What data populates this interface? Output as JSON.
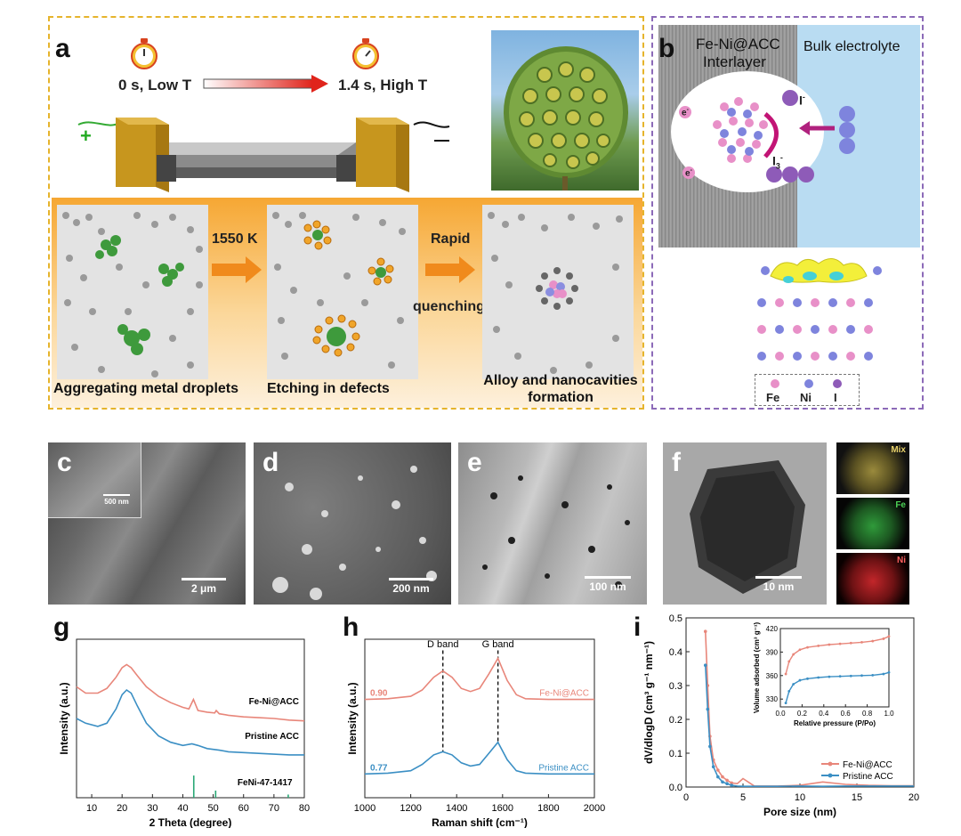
{
  "panel_a": {
    "label": "a",
    "time_start": "0 s, Low T",
    "time_end": "1.4 s, High T",
    "steps": [
      {
        "caption": "Aggregating metal droplets"
      },
      {
        "caption": "Etching in defects"
      },
      {
        "caption": "Alloy and nanocavities formation"
      }
    ],
    "arrow1": "1550 K",
    "arrow2_line1": "Rapid",
    "arrow2_line2": "quenching"
  },
  "panel_b": {
    "label": "b",
    "interlayer_line1": "Fe-Ni@ACC",
    "interlayer_line2": "Interlayer",
    "bulk": "Bulk electrolyte",
    "electron": "e",
    "iodide": "I",
    "triiodide": "I",
    "triiodide_sub": "3",
    "legend": [
      "Fe",
      "Ni",
      "I"
    ]
  },
  "micrographs": [
    {
      "label": "c",
      "scale": "2 μm",
      "inset_scale": "500 nm"
    },
    {
      "label": "d",
      "scale": "200 nm"
    },
    {
      "label": "e",
      "scale": "100 nm"
    },
    {
      "label": "f",
      "scale": "10 nm",
      "maps": [
        "Mix",
        "Fe",
        "Ni"
      ]
    }
  ],
  "chart_data": [
    {
      "panel": "g",
      "type": "line",
      "xlabel": "2 Theta (degree)",
      "ylabel": "Intensity (a.u.)",
      "xlim": [
        5,
        80
      ],
      "xticks": [
        10,
        20,
        30,
        40,
        50,
        60,
        70,
        80
      ],
      "series": [
        {
          "name": "Fe-Ni@ACC",
          "color": "#e8867a",
          "x": [
            5,
            8,
            12,
            15,
            18,
            20,
            21.5,
            23,
            25,
            28,
            32,
            36,
            40,
            42,
            43.5,
            45,
            48,
            50.5,
            51,
            52,
            55,
            60,
            65,
            70,
            75,
            80
          ],
          "y": [
            0.7,
            0.66,
            0.66,
            0.69,
            0.76,
            0.82,
            0.84,
            0.82,
            0.77,
            0.7,
            0.64,
            0.6,
            0.57,
            0.56,
            0.62,
            0.55,
            0.54,
            0.535,
            0.55,
            0.53,
            0.52,
            0.51,
            0.505,
            0.5,
            0.49,
            0.485
          ]
        },
        {
          "name": "Pristine ACC",
          "color": "#3b8fc4",
          "x": [
            5,
            8,
            12,
            15,
            18,
            20,
            21.5,
            23,
            25,
            28,
            32,
            36,
            40,
            43,
            45,
            48,
            52,
            55,
            60,
            65,
            70,
            75,
            80
          ],
          "y": [
            0.5,
            0.47,
            0.45,
            0.47,
            0.56,
            0.65,
            0.68,
            0.66,
            0.58,
            0.47,
            0.39,
            0.35,
            0.33,
            0.34,
            0.33,
            0.31,
            0.3,
            0.29,
            0.285,
            0.28,
            0.275,
            0.27,
            0.27
          ]
        },
        {
          "name": "FeNi-47-1417",
          "type": "stick",
          "color": "#2aa876",
          "x": [
            43.6,
            50.8,
            74.7
          ],
          "y": [
            0.14,
            0.045,
            0.02
          ]
        }
      ]
    },
    {
      "panel": "h",
      "type": "line",
      "xlabel": "Raman shift (cm⁻¹)",
      "ylabel": "Intensity (a.u.)",
      "xlim": [
        1000,
        2000
      ],
      "xticks": [
        1000,
        1200,
        1400,
        1600,
        1800,
        2000
      ],
      "annotations": {
        "d_band": "D band",
        "g_band": "G band",
        "d_pos": 1340,
        "g_pos": 1580
      },
      "series": [
        {
          "name": "Fe-Ni@ACC",
          "ratio": "0.90",
          "color": "#e8867a",
          "x": [
            1000,
            1100,
            1200,
            1250,
            1300,
            1340,
            1380,
            1420,
            1460,
            1500,
            1540,
            1580,
            1620,
            1660,
            1700,
            1800,
            1900,
            2000
          ],
          "y": [
            0.62,
            0.625,
            0.64,
            0.68,
            0.76,
            0.8,
            0.76,
            0.69,
            0.67,
            0.69,
            0.78,
            0.88,
            0.74,
            0.65,
            0.625,
            0.62,
            0.62,
            0.62
          ]
        },
        {
          "name": "Pristine ACC",
          "ratio": "0.77",
          "color": "#3b8fc4",
          "x": [
            1000,
            1100,
            1200,
            1250,
            1300,
            1340,
            1380,
            1420,
            1460,
            1500,
            1540,
            1580,
            1620,
            1660,
            1700,
            1800,
            1900,
            2000
          ],
          "y": [
            0.15,
            0.155,
            0.17,
            0.21,
            0.27,
            0.29,
            0.27,
            0.22,
            0.2,
            0.21,
            0.28,
            0.35,
            0.24,
            0.17,
            0.155,
            0.15,
            0.15,
            0.15
          ]
        }
      ]
    },
    {
      "panel": "i",
      "type": "line",
      "xlabel": "Pore size (nm)",
      "ylabel": "dV/dlogD (cm³ g⁻¹ nm⁻¹)",
      "xlim": [
        0,
        20
      ],
      "ylim": [
        0,
        0.5
      ],
      "xticks": [
        0,
        5,
        10,
        15,
        20
      ],
      "yticks": [
        0.0,
        0.1,
        0.2,
        0.3,
        0.4,
        0.5
      ],
      "legend_position": "bottom-right",
      "series": [
        {
          "name": "Fe-Ni@ACC",
          "color": "#e8867a",
          "x": [
            1.7,
            1.9,
            2.1,
            2.4,
            2.8,
            3.2,
            3.6,
            4.0,
            4.5,
            5.0,
            6,
            8,
            10,
            12,
            14,
            16,
            18,
            20
          ],
          "y": [
            0.46,
            0.3,
            0.15,
            0.08,
            0.05,
            0.03,
            0.02,
            0.012,
            0.01,
            0.025,
            0.003,
            0.003,
            0.005,
            0.015,
            0.008,
            0.005,
            0.004,
            0.004
          ]
        },
        {
          "name": "Pristine ACC",
          "color": "#3b8fc4",
          "x": [
            1.7,
            1.9,
            2.1,
            2.4,
            2.8,
            3.2,
            3.6,
            4.0,
            4.5,
            5.0,
            6,
            8,
            10,
            12,
            14,
            16,
            18,
            20
          ],
          "y": [
            0.36,
            0.23,
            0.12,
            0.06,
            0.03,
            0.015,
            0.01,
            0.005,
            0.003,
            0.002,
            0.002,
            0.002,
            0.003,
            0.002,
            0.003,
            0.003,
            0.003,
            0.003
          ]
        }
      ],
      "inset": {
        "xlabel": "Relative pressure (P/Po)",
        "ylabel": "Volume adsorbed (cm³ g⁻¹)",
        "xlim": [
          0,
          1.0
        ],
        "ylim": [
          320,
          420
        ],
        "xticks": [
          0.0,
          0.2,
          0.4,
          0.6,
          0.8,
          1.0
        ],
        "yticks": [
          330,
          360,
          390,
          420
        ],
        "series": [
          {
            "name": "Fe-Ni@ACC",
            "color": "#e8867a",
            "x": [
              0.05,
              0.08,
              0.12,
              0.18,
              0.25,
              0.35,
              0.45,
              0.55,
              0.65,
              0.75,
              0.85,
              0.95,
              1.0
            ],
            "y": [
              362,
              378,
              387,
              393,
              396,
              398,
              399.5,
              400.5,
              401.5,
              402.5,
              404,
              407,
              410
            ]
          },
          {
            "name": "Pristine ACC",
            "color": "#3b8fc4",
            "x": [
              0.05,
              0.08,
              0.12,
              0.18,
              0.25,
              0.35,
              0.45,
              0.55,
              0.65,
              0.75,
              0.85,
              0.95,
              1.0
            ],
            "y": [
              325,
              340,
              349,
              354,
              356,
              357.5,
              358.5,
              359,
              359.5,
              360,
              360.5,
              362,
              364
            ]
          }
        ]
      }
    }
  ]
}
